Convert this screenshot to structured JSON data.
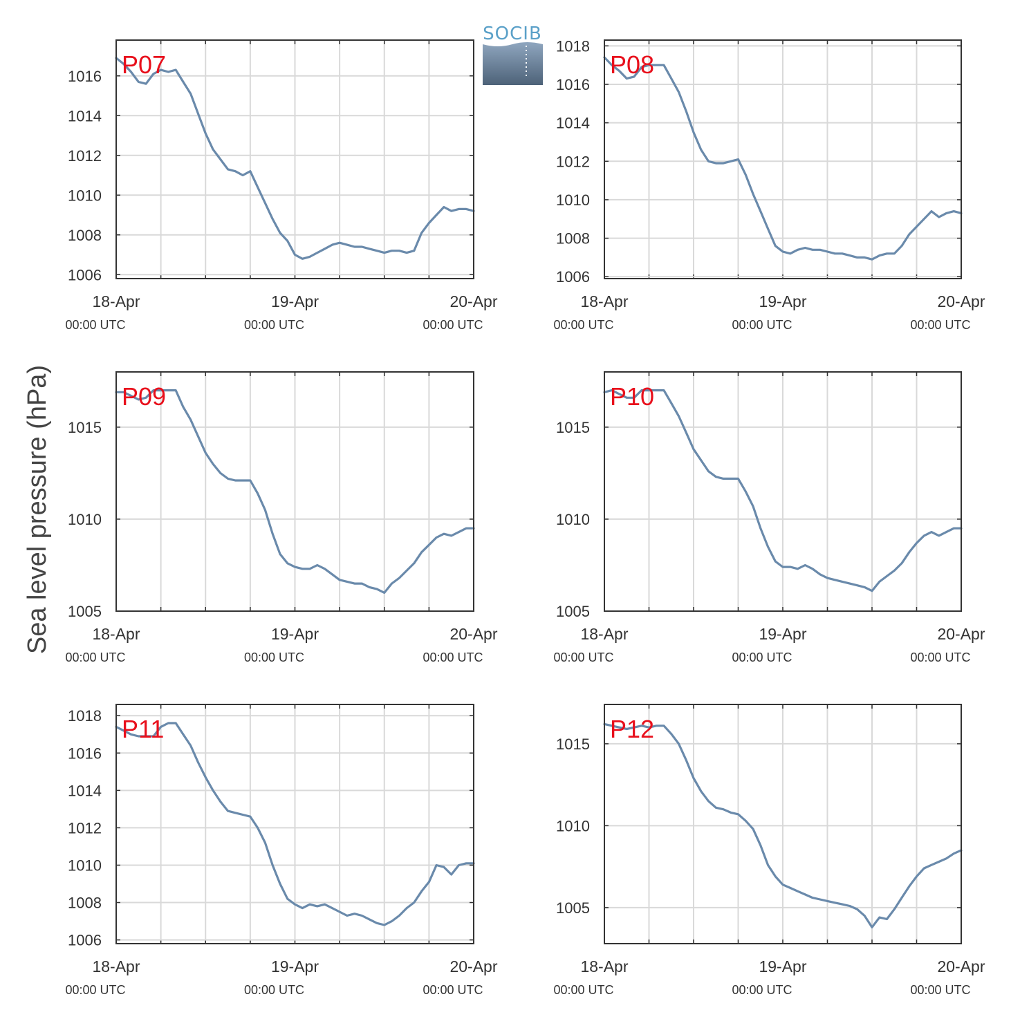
{
  "logo": {
    "text": "SOCIB"
  },
  "chart_data": {
    "type": "line",
    "ylabel": "Sea level pressure (hPa)",
    "line_color": "#6a8aab",
    "grid": true,
    "x_ticks": [
      {
        "x": 0,
        "date": "18-Apr",
        "time": "00:00 UTC"
      },
      {
        "x": 24,
        "date": "19-Apr",
        "time": "00:00 UTC"
      },
      {
        "x": 48,
        "date": "20-Apr",
        "time": "00:00 UTC"
      }
    ],
    "xlim": [
      0,
      48
    ],
    "x_unit": "hours after 18-Apr 00:00 UTC",
    "panels": [
      {
        "name": "P07",
        "ylim": [
          1005.8,
          1017.8
        ],
        "yticks": [
          1006,
          1008,
          1010,
          1012,
          1014,
          1016
        ],
        "x": [
          0,
          1,
          2,
          3,
          4,
          5,
          6,
          7,
          8,
          9,
          10,
          11,
          12,
          13,
          14,
          15,
          16,
          17,
          18,
          19,
          20,
          21,
          22,
          23,
          24,
          25,
          26,
          27,
          28,
          29,
          30,
          31,
          32,
          33,
          34,
          35,
          36,
          37,
          38,
          39,
          40,
          41,
          42,
          43,
          44,
          45,
          46,
          47,
          48
        ],
        "values": [
          1016.9,
          1016.6,
          1016.2,
          1015.7,
          1015.6,
          1016.1,
          1016.3,
          1016.2,
          1016.3,
          1015.7,
          1015.1,
          1014.1,
          1013.1,
          1012.3,
          1011.8,
          1011.3,
          1011.2,
          1011.0,
          1011.2,
          1010.4,
          1009.6,
          1008.8,
          1008.1,
          1007.7,
          1007.0,
          1006.8,
          1006.9,
          1007.1,
          1007.3,
          1007.5,
          1007.6,
          1007.5,
          1007.4,
          1007.4,
          1007.3,
          1007.2,
          1007.1,
          1007.2,
          1007.2,
          1007.1,
          1007.2,
          1008.1,
          1008.6,
          1009.0,
          1009.4,
          1009.2,
          1009.3,
          1009.3,
          1009.2
        ]
      },
      {
        "name": "P08",
        "ylim": [
          1005.9,
          1018.3
        ],
        "yticks": [
          1006,
          1008,
          1010,
          1012,
          1014,
          1016,
          1018
        ],
        "x": [
          0,
          1,
          2,
          3,
          4,
          5,
          6,
          7,
          8,
          9,
          10,
          11,
          12,
          13,
          14,
          15,
          16,
          17,
          18,
          19,
          20,
          21,
          22,
          23,
          24,
          25,
          26,
          27,
          28,
          29,
          30,
          31,
          32,
          33,
          34,
          35,
          36,
          37,
          38,
          39,
          40,
          41,
          42,
          43,
          44,
          45,
          46,
          47,
          48
        ],
        "values": [
          1017.4,
          1017.0,
          1016.7,
          1016.3,
          1016.4,
          1016.9,
          1017.0,
          1017.0,
          1017.0,
          1016.3,
          1015.6,
          1014.6,
          1013.5,
          1012.6,
          1012.0,
          1011.9,
          1011.9,
          1012.0,
          1012.1,
          1011.3,
          1010.3,
          1009.4,
          1008.5,
          1007.6,
          1007.3,
          1007.2,
          1007.4,
          1007.5,
          1007.4,
          1007.4,
          1007.3,
          1007.2,
          1007.2,
          1007.1,
          1007.0,
          1007.0,
          1006.9,
          1007.1,
          1007.2,
          1007.2,
          1007.6,
          1008.2,
          1008.6,
          1009.0,
          1009.4,
          1009.1,
          1009.3,
          1009.4,
          1009.3
        ]
      },
      {
        "name": "P09",
        "ylim": [
          1005,
          1018
        ],
        "yticks": [
          1005,
          1010,
          1015
        ],
        "x": [
          0,
          1,
          2,
          3,
          4,
          5,
          6,
          7,
          8,
          9,
          10,
          11,
          12,
          13,
          14,
          15,
          16,
          17,
          18,
          19,
          20,
          21,
          22,
          23,
          24,
          25,
          26,
          27,
          28,
          29,
          30,
          31,
          32,
          33,
          34,
          35,
          36,
          37,
          38,
          39,
          40,
          41,
          42,
          43,
          44,
          45,
          46,
          47,
          48
        ],
        "values": [
          1016.9,
          1016.9,
          1016.7,
          1016.5,
          1016.6,
          1017.0,
          1017.0,
          1017.0,
          1017.0,
          1016.1,
          1015.4,
          1014.5,
          1013.6,
          1013.0,
          1012.5,
          1012.2,
          1012.1,
          1012.1,
          1012.1,
          1011.4,
          1010.5,
          1009.2,
          1008.1,
          1007.6,
          1007.4,
          1007.3,
          1007.3,
          1007.5,
          1007.3,
          1007.0,
          1006.7,
          1006.6,
          1006.5,
          1006.5,
          1006.3,
          1006.2,
          1006.0,
          1006.5,
          1006.8,
          1007.2,
          1007.6,
          1008.2,
          1008.6,
          1009.0,
          1009.2,
          1009.1,
          1009.3,
          1009.5,
          1009.5
        ]
      },
      {
        "name": "P10",
        "ylim": [
          1005,
          1018
        ],
        "yticks": [
          1005,
          1010,
          1015
        ],
        "x": [
          0,
          1,
          2,
          3,
          4,
          5,
          6,
          7,
          8,
          9,
          10,
          11,
          12,
          13,
          14,
          15,
          16,
          17,
          18,
          19,
          20,
          21,
          22,
          23,
          24,
          25,
          26,
          27,
          28,
          29,
          30,
          31,
          32,
          33,
          34,
          35,
          36,
          37,
          38,
          39,
          40,
          41,
          42,
          43,
          44,
          45,
          46,
          47,
          48
        ],
        "values": [
          1016.9,
          1017.0,
          1016.8,
          1016.6,
          1016.6,
          1017.0,
          1017.0,
          1017.0,
          1017.0,
          1016.3,
          1015.6,
          1014.7,
          1013.8,
          1013.2,
          1012.6,
          1012.3,
          1012.2,
          1012.2,
          1012.2,
          1011.5,
          1010.7,
          1009.5,
          1008.5,
          1007.7,
          1007.4,
          1007.4,
          1007.3,
          1007.5,
          1007.3,
          1007.0,
          1006.8,
          1006.7,
          1006.6,
          1006.5,
          1006.4,
          1006.3,
          1006.1,
          1006.6,
          1006.9,
          1007.2,
          1007.6,
          1008.2,
          1008.7,
          1009.1,
          1009.3,
          1009.1,
          1009.3,
          1009.5,
          1009.5
        ]
      },
      {
        "name": "P11",
        "ylim": [
          1005.8,
          1018.6
        ],
        "yticks": [
          1006,
          1008,
          1010,
          1012,
          1014,
          1016,
          1018
        ],
        "x": [
          0,
          1,
          2,
          3,
          4,
          5,
          6,
          7,
          8,
          9,
          10,
          11,
          12,
          13,
          14,
          15,
          16,
          17,
          18,
          19,
          20,
          21,
          22,
          23,
          24,
          25,
          26,
          27,
          28,
          29,
          30,
          31,
          32,
          33,
          34,
          35,
          36,
          37,
          38,
          39,
          40,
          41,
          42,
          43,
          44,
          45,
          46,
          47,
          48
        ],
        "values": [
          1017.4,
          1017.2,
          1017.0,
          1016.9,
          1016.9,
          1016.9,
          1017.4,
          1017.6,
          1017.6,
          1017.0,
          1016.4,
          1015.5,
          1014.7,
          1014.0,
          1013.4,
          1012.9,
          1012.8,
          1012.7,
          1012.6,
          1012.0,
          1011.2,
          1010.0,
          1009.0,
          1008.2,
          1007.9,
          1007.7,
          1007.9,
          1007.8,
          1007.9,
          1007.7,
          1007.5,
          1007.3,
          1007.4,
          1007.3,
          1007.1,
          1006.9,
          1006.8,
          1007.0,
          1007.3,
          1007.7,
          1008.0,
          1008.6,
          1009.1,
          1010.0,
          1009.9,
          1009.5,
          1010.0,
          1010.1,
          1010.1
        ]
      },
      {
        "name": "P12",
        "ylim": [
          1002.8,
          1017.4
        ],
        "yticks": [
          1005,
          1010,
          1015
        ],
        "x": [
          0,
          1,
          2,
          3,
          4,
          5,
          6,
          7,
          8,
          9,
          10,
          11,
          12,
          13,
          14,
          15,
          16,
          17,
          18,
          19,
          20,
          21,
          22,
          23,
          24,
          25,
          26,
          27,
          28,
          29,
          30,
          31,
          32,
          33,
          34,
          35,
          36,
          37,
          38,
          39,
          40,
          41,
          42,
          43,
          44,
          45,
          46,
          47,
          48
        ],
        "values": [
          1016.2,
          1016.1,
          1016.0,
          1015.9,
          1016.0,
          1016.1,
          1016.0,
          1016.1,
          1016.1,
          1015.6,
          1015.0,
          1014.0,
          1012.9,
          1012.1,
          1011.5,
          1011.1,
          1011.0,
          1010.8,
          1010.7,
          1010.3,
          1009.8,
          1008.8,
          1007.6,
          1006.9,
          1006.4,
          1006.2,
          1006.0,
          1005.8,
          1005.6,
          1005.5,
          1005.4,
          1005.3,
          1005.2,
          1005.1,
          1004.9,
          1004.5,
          1003.8,
          1004.4,
          1004.3,
          1004.9,
          1005.6,
          1006.3,
          1006.9,
          1007.4,
          1007.6,
          1007.8,
          1008.0,
          1008.3,
          1008.5
        ]
      }
    ]
  }
}
